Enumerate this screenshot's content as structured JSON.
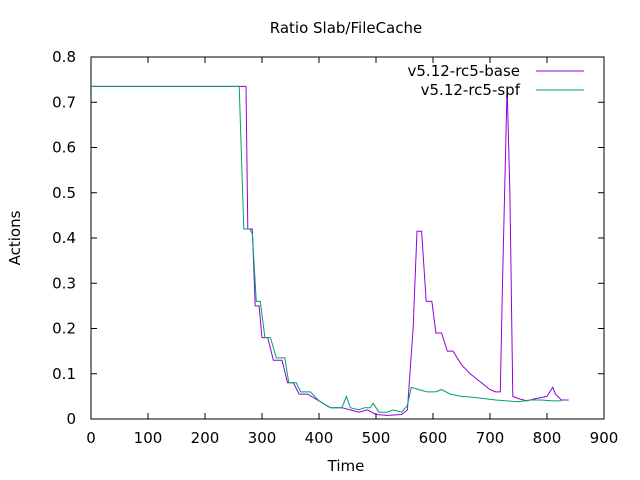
{
  "chart_data": {
    "type": "line",
    "title": "Ratio Slab/FileCache",
    "xlabel": "Time",
    "ylabel": "Actions",
    "xlim": [
      0,
      900
    ],
    "ylim": [
      0,
      0.8
    ],
    "xticks": [
      0,
      100,
      200,
      300,
      400,
      500,
      600,
      700,
      800,
      900
    ],
    "yticks": [
      0,
      0.1,
      0.2,
      0.3,
      0.4,
      0.5,
      0.6,
      0.7,
      0.8
    ],
    "legend_position": "top-right",
    "series": [
      {
        "name": "v5.12-rc5-base",
        "color": "#9400d3",
        "points": [
          [
            0,
            0.735
          ],
          [
            265,
            0.735
          ],
          [
            272,
            0.735
          ],
          [
            275,
            0.42
          ],
          [
            283,
            0.42
          ],
          [
            288,
            0.25
          ],
          [
            295,
            0.25
          ],
          [
            300,
            0.18
          ],
          [
            310,
            0.18
          ],
          [
            320,
            0.13
          ],
          [
            335,
            0.13
          ],
          [
            345,
            0.08
          ],
          [
            355,
            0.08
          ],
          [
            365,
            0.055
          ],
          [
            380,
            0.055
          ],
          [
            400,
            0.04
          ],
          [
            420,
            0.025
          ],
          [
            440,
            0.025
          ],
          [
            455,
            0.02
          ],
          [
            470,
            0.015
          ],
          [
            485,
            0.02
          ],
          [
            500,
            0.01
          ],
          [
            520,
            0.008
          ],
          [
            545,
            0.01
          ],
          [
            555,
            0.02
          ],
          [
            565,
            0.2
          ],
          [
            572,
            0.415
          ],
          [
            580,
            0.415
          ],
          [
            588,
            0.26
          ],
          [
            598,
            0.26
          ],
          [
            605,
            0.19
          ],
          [
            615,
            0.19
          ],
          [
            625,
            0.15
          ],
          [
            635,
            0.15
          ],
          [
            650,
            0.12
          ],
          [
            665,
            0.1
          ],
          [
            680,
            0.085
          ],
          [
            700,
            0.065
          ],
          [
            710,
            0.06
          ],
          [
            718,
            0.06
          ],
          [
            722,
            0.3
          ],
          [
            730,
            0.735
          ],
          [
            735,
            0.5
          ],
          [
            740,
            0.05
          ],
          [
            750,
            0.045
          ],
          [
            765,
            0.04
          ],
          [
            780,
            0.045
          ],
          [
            800,
            0.05
          ],
          [
            810,
            0.07
          ],
          [
            815,
            0.055
          ],
          [
            825,
            0.042
          ],
          [
            838,
            0.042
          ]
        ]
      },
      {
        "name": "v5.12-rc5-spf",
        "color": "#009e73",
        "points": [
          [
            0,
            0.735
          ],
          [
            260,
            0.735
          ],
          [
            268,
            0.42
          ],
          [
            278,
            0.42
          ],
          [
            283,
            0.41
          ],
          [
            290,
            0.26
          ],
          [
            297,
            0.26
          ],
          [
            305,
            0.18
          ],
          [
            315,
            0.18
          ],
          [
            325,
            0.135
          ],
          [
            340,
            0.135
          ],
          [
            347,
            0.08
          ],
          [
            360,
            0.08
          ],
          [
            368,
            0.06
          ],
          [
            385,
            0.06
          ],
          [
            400,
            0.04
          ],
          [
            420,
            0.025
          ],
          [
            440,
            0.025
          ],
          [
            448,
            0.05
          ],
          [
            455,
            0.025
          ],
          [
            470,
            0.02
          ],
          [
            480,
            0.025
          ],
          [
            490,
            0.025
          ],
          [
            495,
            0.035
          ],
          [
            505,
            0.015
          ],
          [
            520,
            0.015
          ],
          [
            530,
            0.02
          ],
          [
            545,
            0.015
          ],
          [
            555,
            0.03
          ],
          [
            562,
            0.07
          ],
          [
            575,
            0.065
          ],
          [
            590,
            0.06
          ],
          [
            605,
            0.06
          ],
          [
            615,
            0.065
          ],
          [
            630,
            0.055
          ],
          [
            650,
            0.05
          ],
          [
            670,
            0.048
          ],
          [
            690,
            0.045
          ],
          [
            710,
            0.042
          ],
          [
            730,
            0.04
          ],
          [
            750,
            0.038
          ],
          [
            770,
            0.042
          ],
          [
            790,
            0.042
          ],
          [
            810,
            0.04
          ],
          [
            825,
            0.04
          ]
        ]
      }
    ]
  }
}
